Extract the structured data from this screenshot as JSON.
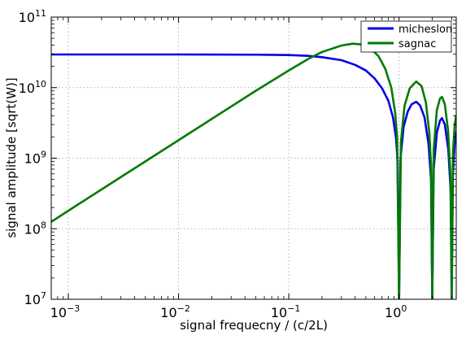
{
  "chart_data": {
    "type": "line",
    "xlabel": "signal frequecny / (c/2L)",
    "ylabel": "signal amplitude [sqrt(W)]",
    "xscale": "log",
    "yscale": "log",
    "xlim": [
      0.0007,
      3.3
    ],
    "ylim": [
      10000000.0,
      100000000000.0
    ],
    "grid": true,
    "legend": "top-right",
    "x_ticks": [
      {
        "value": 0.001,
        "base": "10",
        "exp": "−3"
      },
      {
        "value": 0.01,
        "base": "10",
        "exp": "−2"
      },
      {
        "value": 0.1,
        "base": "10",
        "exp": "−1"
      },
      {
        "value": 1,
        "base": "10",
        "exp": "0"
      }
    ],
    "y_ticks": [
      {
        "value": 10000000.0,
        "base": "10",
        "exp": "7"
      },
      {
        "value": 100000000.0,
        "base": "10",
        "exp": "8"
      },
      {
        "value": 1000000000.0,
        "base": "10",
        "exp": "9"
      },
      {
        "value": 10000000000.0,
        "base": "10",
        "exp": "10"
      },
      {
        "value": 100000000000.0,
        "base": "10",
        "exp": "11"
      }
    ],
    "series": [
      {
        "name": "micheslon",
        "color": "#0000e6",
        "points": [
          [
            0.0007,
            29500000000.0
          ],
          [
            0.01,
            29500000000.0
          ],
          [
            0.05,
            29300000000.0
          ],
          [
            0.1,
            29000000000.0
          ],
          [
            0.15,
            28200000000.0
          ],
          [
            0.2,
            27000000000.0
          ],
          [
            0.3,
            24500000000.0
          ],
          [
            0.4,
            21000000000.0
          ],
          [
            0.5,
            17500000000.0
          ],
          [
            0.6,
            13500000000.0
          ],
          [
            0.7,
            9800000000.0
          ],
          [
            0.8,
            6500000000.0
          ],
          [
            0.88,
            3800000000.0
          ],
          [
            0.94,
            1900000000.0
          ],
          [
            0.97,
            900000000.0
          ],
          [
            1.0,
            10000000.0
          ],
          [
            1.03,
            1000000000.0
          ],
          [
            1.1,
            2800000000.0
          ],
          [
            1.2,
            4600000000.0
          ],
          [
            1.3,
            5800000000.0
          ],
          [
            1.43,
            6300000000.0
          ],
          [
            1.55,
            5600000000.0
          ],
          [
            1.7,
            3800000000.0
          ],
          [
            1.85,
            1600000000.0
          ],
          [
            1.95,
            500000000.0
          ],
          [
            2.0,
            10000000.0
          ],
          [
            2.06,
            700000000.0
          ],
          [
            2.2,
            2300000000.0
          ],
          [
            2.35,
            3400000000.0
          ],
          [
            2.45,
            3700000000.0
          ],
          [
            2.6,
            3000000000.0
          ],
          [
            2.8,
            1300000000.0
          ],
          [
            2.95,
            300000000.0
          ],
          [
            3.0,
            10000000.0
          ],
          [
            3.08,
            600000000.0
          ],
          [
            3.2,
            1700000000.0
          ],
          [
            3.3,
            2400000000.0
          ]
        ]
      },
      {
        "name": "sagnac",
        "color": "#007a00",
        "points": [
          [
            0.0007,
            125000000.0
          ],
          [
            0.001,
            180000000.0
          ],
          [
            0.01,
            1800000000.0
          ],
          [
            0.05,
            9000000000.0
          ],
          [
            0.1,
            17500000000.0
          ],
          [
            0.15,
            25500000000.0
          ],
          [
            0.2,
            32000000000.0
          ],
          [
            0.3,
            39500000000.0
          ],
          [
            0.38,
            42000000000.0
          ],
          [
            0.45,
            41000000000.0
          ],
          [
            0.55,
            36000000000.0
          ],
          [
            0.65,
            28000000000.0
          ],
          [
            0.75,
            18500000000.0
          ],
          [
            0.85,
            10000000000.0
          ],
          [
            0.92,
            4500000000.0
          ],
          [
            0.96,
            2000000000.0
          ],
          [
            1.0,
            10000000.0
          ],
          [
            1.04,
            1700000000.0
          ],
          [
            1.12,
            5500000000.0
          ],
          [
            1.25,
            9800000000.0
          ],
          [
            1.43,
            12200000000.0
          ],
          [
            1.6,
            10500000000.0
          ],
          [
            1.75,
            6200000000.0
          ],
          [
            1.88,
            2300000000.0
          ],
          [
            1.95,
            800000000.0
          ],
          [
            2.0,
            10000000.0
          ],
          [
            2.06,
            1300000000.0
          ],
          [
            2.2,
            4800000000.0
          ],
          [
            2.35,
            7000000000.0
          ],
          [
            2.45,
            7400000000.0
          ],
          [
            2.6,
            5800000000.0
          ],
          [
            2.78,
            2500000000.0
          ],
          [
            2.92,
            600000000.0
          ],
          [
            3.0,
            10000000.0
          ],
          [
            3.08,
            1200000000.0
          ],
          [
            3.2,
            3000000000.0
          ],
          [
            3.3,
            4100000000.0
          ]
        ]
      }
    ]
  }
}
